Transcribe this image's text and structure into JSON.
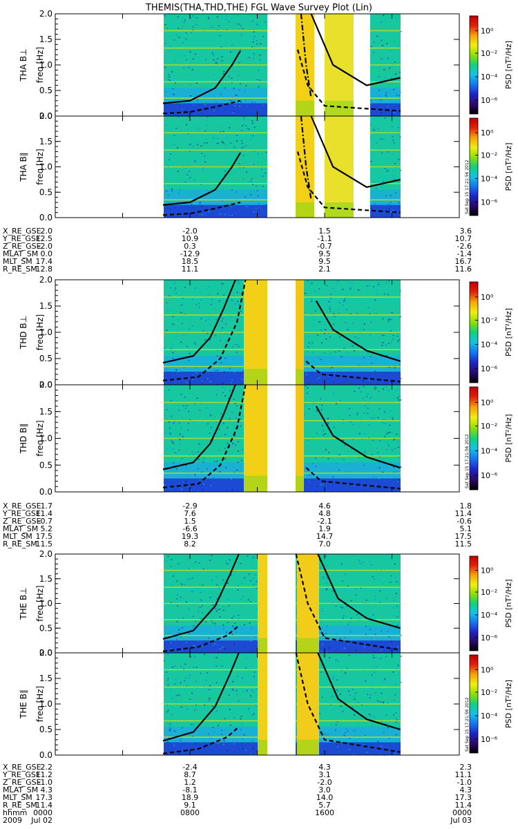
{
  "chart_data": {
    "type": "heatmap",
    "title": "THEMIS(THA,THD,THE) FGL Wave Survey Plot (Lin)",
    "signature": "Sat Sep 15 17:21:56 2012",
    "colorbar": {
      "label": "PSD [nT²/Hz]",
      "ticks": [
        "10⁰",
        "10⁻²",
        "10⁻⁴",
        "10⁻⁶"
      ],
      "scale": "log",
      "colormap": [
        "#000000",
        "#2b0a6b",
        "#1d24c8",
        "#1577ef",
        "#12c3e8",
        "#12d07a",
        "#8fe000",
        "#f0ee10",
        "#f5a400",
        "#e5200a",
        "#c00000"
      ]
    },
    "yaxis": {
      "label": "freq [Hz]",
      "ylim": [
        0.0,
        2.0
      ],
      "tick_labels": [
        "0.0",
        "0.5",
        "1.0",
        "1.5",
        "2.0"
      ]
    },
    "xaxis": {
      "range_hhmm": [
        "0000",
        "2400"
      ]
    },
    "probes": [
      {
        "panels": [
          "THA B⊥",
          "THA B∥"
        ],
        "ephemeris": [
          {
            "label": "X_RE_GSE",
            "values": [
              "2.0",
              "-2.0",
              "1.5",
              "3.6"
            ]
          },
          {
            "label": "Y_RE_GSE",
            "values": [
              "12.5",
              "10.9",
              "-1.1",
              "10.7"
            ]
          },
          {
            "label": "Z_RE_GSE",
            "values": [
              "-2.0",
              "0.3",
              "-0.7",
              "-2.6"
            ]
          },
          {
            "label": "MLAT_SM",
            "values": [
              "0.0",
              "-12.9",
              "9.5",
              "-1.4"
            ]
          },
          {
            "label": "MLT_SM",
            "values": [
              "17.4",
              "18.5",
              "9.5",
              "16.7"
            ]
          },
          {
            "label": "R_RE_SM",
            "values": [
              "12.8",
              "11.1",
              "2.1",
              "11.6"
            ]
          }
        ]
      },
      {
        "panels": [
          "THD B⊥",
          "THD B∥"
        ],
        "ephemeris": [
          {
            "label": "X_RE_GSE",
            "values": [
              "1.7",
              "-2.9",
              "4.6",
              "1.8"
            ]
          },
          {
            "label": "Y_RE_GSE",
            "values": [
              "11.4",
              "7.6",
              "4.8",
              "11.4"
            ]
          },
          {
            "label": "Z_RE_GSE",
            "values": [
              "-0.7",
              "1.5",
              "-2.1",
              "-0.6"
            ]
          },
          {
            "label": "MLAT_SM",
            "values": [
              "5.2",
              "-6.6",
              "1.9",
              "5.1"
            ]
          },
          {
            "label": "MLT_SM",
            "values": [
              "17.5",
              "19.3",
              "14.7",
              "17.5"
            ]
          },
          {
            "label": "R_RE_SM",
            "values": [
              "11.5",
              "8.2",
              "7.0",
              "11.5"
            ]
          }
        ]
      },
      {
        "panels": [
          "THE B⊥",
          "THE B∥"
        ],
        "ephemeris": [
          {
            "label": "X_RE_GSE",
            "values": [
              "2.2",
              "-2.4",
              "4.3",
              "2.3"
            ]
          },
          {
            "label": "Y_RE_GSE",
            "values": [
              "11.2",
              "8.7",
              "3.1",
              "11.1"
            ]
          },
          {
            "label": "Z_RE_GSE",
            "values": [
              "-1.0",
              "1.2",
              "-2.0",
              "-1.0"
            ]
          },
          {
            "label": "MLAT_SM",
            "values": [
              "4.3",
              "-8.1",
              "3.0",
              "4.3"
            ]
          },
          {
            "label": "MLT_SM",
            "values": [
              "17.3",
              "18.9",
              "14.0",
              "17.3"
            ]
          },
          {
            "label": "R_RE_SM",
            "values": [
              "11.4",
              "9.1",
              "5.7",
              "11.4"
            ]
          }
        ],
        "time_rows": [
          {
            "label": "hhmm",
            "values": [
              "0000",
              "0800",
              "1600",
              "0000"
            ]
          },
          {
            "label": "2009",
            "values": [
              "Jul 02",
              "",
              "",
              "Jul 03"
            ]
          }
        ]
      }
    ]
  }
}
